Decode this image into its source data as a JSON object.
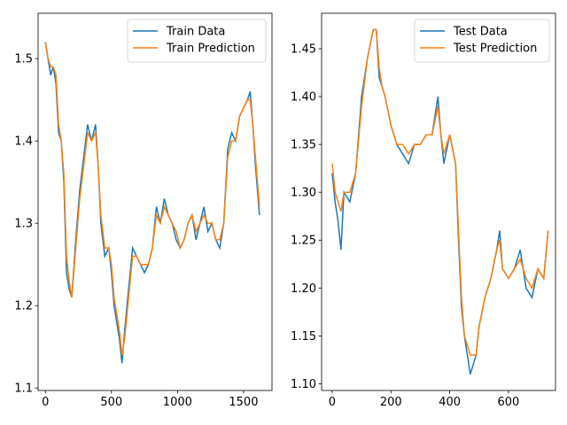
{
  "chart_data": [
    {
      "type": "line",
      "title": "",
      "xlabel": "",
      "ylabel": "",
      "xlim": [
        -55,
        1715
      ],
      "ylim": [
        1.097,
        1.555
      ],
      "xticks": [
        0,
        500,
        1000,
        1500
      ],
      "yticks": [
        1.1,
        1.2,
        1.3,
        1.4,
        1.5
      ],
      "ytick_labels": [
        "1.1",
        "1.2",
        "1.3",
        "1.4",
        "1.5"
      ],
      "legend_position": "upper right",
      "grid": false,
      "series": [
        {
          "name": "Train Data",
          "color": "#1f77b4",
          "x": [
            0,
            20,
            40,
            60,
            80,
            100,
            120,
            140,
            160,
            180,
            200,
            230,
            260,
            290,
            320,
            350,
            380,
            400,
            420,
            450,
            480,
            500,
            520,
            540,
            560,
            580,
            600,
            630,
            660,
            690,
            720,
            750,
            780,
            810,
            840,
            870,
            900,
            930,
            960,
            990,
            1020,
            1050,
            1080,
            1110,
            1140,
            1170,
            1200,
            1230,
            1260,
            1290,
            1320,
            1350,
            1380,
            1410,
            1440,
            1470,
            1500,
            1530,
            1550,
            1570,
            1590,
            1610,
            1620
          ],
          "y": [
            1.52,
            1.5,
            1.48,
            1.49,
            1.47,
            1.41,
            1.4,
            1.35,
            1.24,
            1.22,
            1.21,
            1.28,
            1.34,
            1.38,
            1.42,
            1.4,
            1.42,
            1.37,
            1.3,
            1.26,
            1.27,
            1.24,
            1.2,
            1.18,
            1.16,
            1.13,
            1.17,
            1.22,
            1.27,
            1.26,
            1.25,
            1.24,
            1.25,
            1.27,
            1.32,
            1.3,
            1.33,
            1.31,
            1.3,
            1.28,
            1.27,
            1.28,
            1.3,
            1.31,
            1.28,
            1.3,
            1.32,
            1.29,
            1.3,
            1.28,
            1.27,
            1.3,
            1.39,
            1.41,
            1.4,
            1.43,
            1.44,
            1.45,
            1.46,
            1.42,
            1.37,
            1.33,
            1.31
          ]
        },
        {
          "name": "Train Prediction",
          "color": "#ff7f0e",
          "x": [
            0,
            20,
            40,
            60,
            80,
            100,
            120,
            140,
            160,
            180,
            200,
            230,
            260,
            290,
            320,
            350,
            380,
            400,
            420,
            450,
            480,
            500,
            520,
            540,
            560,
            580,
            600,
            630,
            660,
            690,
            720,
            750,
            780,
            810,
            840,
            870,
            900,
            930,
            960,
            990,
            1020,
            1050,
            1080,
            1110,
            1140,
            1170,
            1200,
            1230,
            1260,
            1290,
            1320,
            1350,
            1380,
            1410,
            1440,
            1470,
            1500,
            1530,
            1550,
            1570,
            1590,
            1610,
            1620
          ],
          "y": [
            1.52,
            1.5,
            1.49,
            1.49,
            1.48,
            1.42,
            1.4,
            1.36,
            1.26,
            1.23,
            1.21,
            1.27,
            1.33,
            1.37,
            1.41,
            1.4,
            1.41,
            1.37,
            1.31,
            1.27,
            1.27,
            1.25,
            1.21,
            1.19,
            1.17,
            1.14,
            1.16,
            1.21,
            1.26,
            1.26,
            1.25,
            1.25,
            1.25,
            1.27,
            1.31,
            1.3,
            1.32,
            1.31,
            1.3,
            1.29,
            1.27,
            1.28,
            1.3,
            1.31,
            1.29,
            1.3,
            1.31,
            1.3,
            1.3,
            1.28,
            1.28,
            1.3,
            1.38,
            1.4,
            1.4,
            1.43,
            1.44,
            1.45,
            1.45,
            1.42,
            1.38,
            1.34,
            1.32
          ]
        }
      ]
    },
    {
      "type": "line",
      "title": "",
      "xlabel": "",
      "ylabel": "",
      "xlim": [
        -36,
        760
      ],
      "ylim": [
        1.093,
        1.487
      ],
      "xticks": [
        0,
        200,
        400,
        600
      ],
      "yticks": [
        1.1,
        1.15,
        1.2,
        1.25,
        1.3,
        1.35,
        1.4,
        1.45
      ],
      "ytick_labels": [
        "1.10",
        "1.15",
        "1.20",
        "1.25",
        "1.30",
        "1.35",
        "1.40",
        "1.45"
      ],
      "legend_position": "upper right",
      "grid": false,
      "series": [
        {
          "name": "Test Data",
          "color": "#1f77b4",
          "x": [
            0,
            10,
            20,
            30,
            40,
            60,
            80,
            100,
            120,
            140,
            150,
            160,
            170,
            180,
            200,
            220,
            240,
            260,
            280,
            300,
            320,
            340,
            360,
            370,
            380,
            400,
            420,
            430,
            440,
            450,
            460,
            470,
            480,
            490,
            500,
            520,
            540,
            560,
            570,
            580,
            600,
            620,
            640,
            660,
            680,
            700,
            720,
            735
          ],
          "y": [
            1.32,
            1.29,
            1.27,
            1.24,
            1.3,
            1.29,
            1.32,
            1.4,
            1.44,
            1.47,
            1.47,
            1.42,
            1.41,
            1.4,
            1.37,
            1.35,
            1.34,
            1.33,
            1.35,
            1.35,
            1.36,
            1.36,
            1.4,
            1.36,
            1.33,
            1.36,
            1.33,
            1.25,
            1.18,
            1.15,
            1.13,
            1.11,
            1.12,
            1.13,
            1.16,
            1.19,
            1.21,
            1.24,
            1.26,
            1.22,
            1.21,
            1.22,
            1.24,
            1.2,
            1.19,
            1.22,
            1.21,
            1.26
          ]
        },
        {
          "name": "Test Prediction",
          "color": "#ff7f0e",
          "x": [
            0,
            10,
            20,
            30,
            40,
            60,
            80,
            100,
            120,
            140,
            150,
            160,
            170,
            180,
            200,
            220,
            240,
            260,
            280,
            300,
            320,
            340,
            360,
            370,
            380,
            400,
            420,
            430,
            440,
            450,
            460,
            470,
            480,
            490,
            500,
            520,
            540,
            560,
            570,
            580,
            600,
            620,
            640,
            660,
            680,
            700,
            720,
            735
          ],
          "y": [
            1.33,
            1.3,
            1.29,
            1.28,
            1.3,
            1.3,
            1.32,
            1.39,
            1.44,
            1.47,
            1.47,
            1.43,
            1.41,
            1.4,
            1.37,
            1.35,
            1.35,
            1.34,
            1.35,
            1.35,
            1.36,
            1.36,
            1.39,
            1.36,
            1.34,
            1.36,
            1.33,
            1.26,
            1.19,
            1.15,
            1.14,
            1.13,
            1.13,
            1.13,
            1.16,
            1.19,
            1.21,
            1.24,
            1.25,
            1.22,
            1.21,
            1.22,
            1.23,
            1.21,
            1.2,
            1.22,
            1.21,
            1.26
          ]
        }
      ]
    }
  ]
}
